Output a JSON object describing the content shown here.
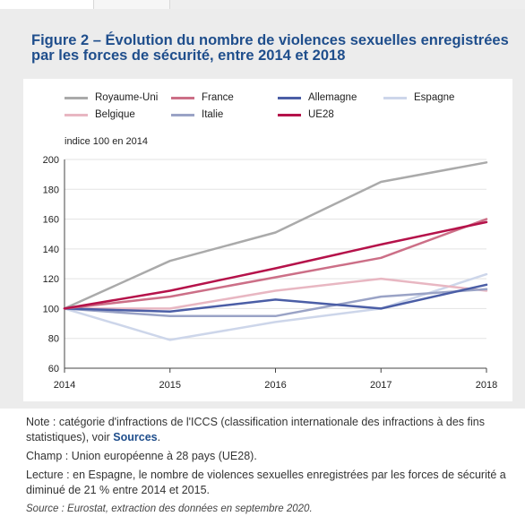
{
  "title_line1": "Figure 2 – Évolution du nombre de violences sexuelles enregistrées",
  "title_line2": "par les forces de sécurité, entre 2014 et 2018",
  "colors": {
    "title": "#1f4e8c",
    "link": "#1f4e8c",
    "panel": "#ececec"
  },
  "chart_data": {
    "type": "line",
    "ylabel": "indice 100 en 2014",
    "x": [
      "2014",
      "2015",
      "2016",
      "2017",
      "2018"
    ],
    "ylim": [
      60,
      200
    ],
    "yticks": [
      60,
      80,
      100,
      120,
      140,
      160,
      180,
      200
    ],
    "grid": "horizontal",
    "legend_position": "top",
    "series": [
      {
        "name": "Royaume-Uni",
        "color": "#aaaaaa",
        "values": [
          100,
          132,
          151,
          185,
          198
        ]
      },
      {
        "name": "France",
        "color": "#cc6f87",
        "values": [
          100,
          108,
          121,
          134,
          160
        ]
      },
      {
        "name": "Allemagne",
        "color": "#4b5ea6",
        "values": [
          100,
          98,
          106,
          100,
          116
        ]
      },
      {
        "name": "Espagne",
        "color": "#cdd6ea",
        "values": [
          100,
          79,
          91,
          100,
          123
        ]
      },
      {
        "name": "Belgique",
        "color": "#e8b7c2",
        "values": [
          100,
          100,
          112,
          120,
          112
        ]
      },
      {
        "name": "Italie",
        "color": "#9aa3c6",
        "values": [
          100,
          95,
          95,
          108,
          113
        ]
      },
      {
        "name": "UE28",
        "color": "#b5124a",
        "values": [
          100,
          112,
          127,
          143,
          158
        ]
      }
    ]
  },
  "notes": {
    "note_text": "Note : catégorie d'infractions de l'ICCS (classification internationale des infractions à des fins statistiques), voir ",
    "note_link": "Sources",
    "note_end": ".",
    "champ": "Champ : Union européenne à 28 pays (UE28).",
    "lecture": "Lecture : en Espagne, le nombre de violences sexuelles enregistrées par les forces de sécurité a diminué de 21 % entre 2014 et 2015.",
    "source": "Source : Eurostat, extraction des données en septembre 2020."
  }
}
